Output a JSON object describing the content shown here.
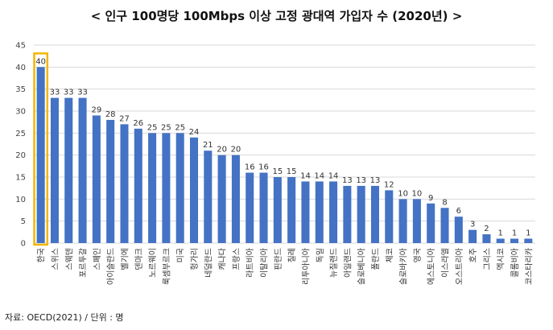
{
  "title": "< 인구 100명당 100Mbps 이상 고정 광대역 가입자 수 (2020년) >",
  "source": "자료: OECD(2021) / 단위 : 명",
  "colors": {
    "bar": "#4472C4",
    "highlight": "#F2B705",
    "grid": "#D9D9D9"
  },
  "chart_data": {
    "type": "bar",
    "title": "< 인구 100명당 100Mbps 이상 고정 광대역 가입자 수 (2020년) >",
    "xlabel": "",
    "ylabel": "",
    "ylim": [
      0,
      45
    ],
    "yticks": [
      0,
      5,
      10,
      15,
      20,
      25,
      30,
      35,
      40,
      45
    ],
    "grid": true,
    "highlight_category": "한국",
    "categories": [
      "한국",
      "스위스",
      "스웨덴",
      "포르투갈",
      "스페인",
      "아이슬란드",
      "벨기에",
      "덴마크",
      "노르웨이",
      "룩셈부르크",
      "미국",
      "헝가리",
      "네덜란드",
      "캐나다",
      "프랑스",
      "라트비아",
      "이탈리아",
      "핀란드",
      "칠레",
      "리투아니아",
      "독일",
      "뉴질랜드",
      "아일랜드",
      "슬로베니아",
      "폴란드",
      "체코",
      "슬로바키아",
      "영국",
      "에스토니아",
      "이스라엘",
      "오스트리아",
      "호주",
      "그리스",
      "멕시코",
      "콜롬비아",
      "코스타리카"
    ],
    "values": [
      40,
      33,
      33,
      33,
      29,
      28,
      27,
      26,
      25,
      25,
      25,
      24,
      21,
      20,
      20,
      16,
      16,
      15,
      15,
      14,
      14,
      14,
      13,
      13,
      13,
      12,
      10,
      10,
      9,
      8,
      6,
      3,
      2,
      1,
      1,
      1
    ]
  }
}
